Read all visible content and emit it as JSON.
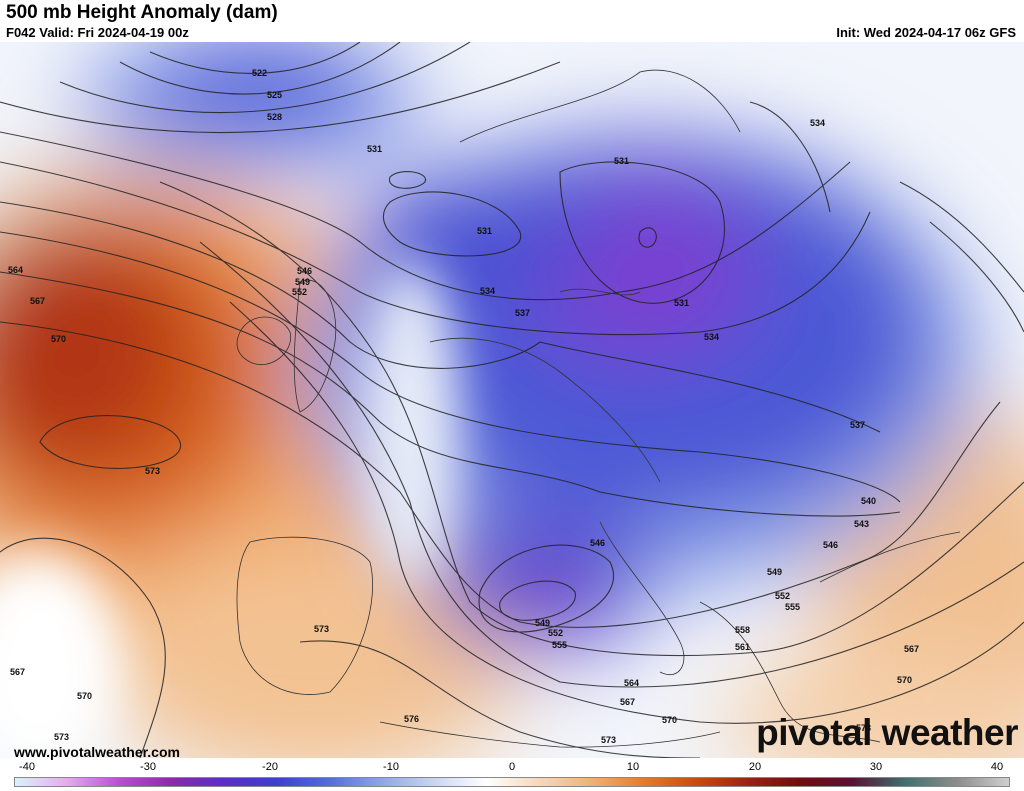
{
  "header": {
    "title": "500 mb Height Anomaly (dam)",
    "valid": "F042 Valid: Fri 2024-04-19 00z",
    "init": "Init: Wed 2024-04-17 06z GFS"
  },
  "footer": {
    "website": "www.pivotalweather.com",
    "brand": "pivotal weather"
  },
  "colorbar": {
    "ticks": [
      "-40",
      "-30",
      "-20",
      "-10",
      "0",
      "10",
      "20",
      "30",
      "40"
    ],
    "min": -40,
    "max": 40,
    "stops": [
      "#d8f3fb",
      "#e7a9ee",
      "#b64fd0",
      "#8a2aa8",
      "#5c2ec7",
      "#3e3fd1",
      "#4f6fd8",
      "#8ea6e6",
      "#c8d5f2",
      "#ffffff",
      "#f7d8bc",
      "#f0b27a",
      "#e37d2c",
      "#c94d12",
      "#9a2310",
      "#6f0e0e",
      "#5a1030",
      "#3f6f70",
      "#8c8c8c",
      "#cfcfcf"
    ]
  },
  "contour_labels": [
    "522",
    "525",
    "528",
    "531",
    "534",
    "537",
    "540",
    "543",
    "546",
    "549",
    "552",
    "555",
    "558",
    "561",
    "564",
    "567",
    "570",
    "573",
    "576"
  ],
  "map_labels": [
    {
      "text": "522"
    },
    {
      "text": "525"
    },
    {
      "text": "528"
    },
    {
      "text": "531"
    },
    {
      "text": "531"
    },
    {
      "text": "531"
    },
    {
      "text": "534"
    },
    {
      "text": "534"
    },
    {
      "text": "534"
    },
    {
      "text": "531"
    },
    {
      "text": "537"
    },
    {
      "text": "537"
    },
    {
      "text": "546"
    },
    {
      "text": "549"
    },
    {
      "text": "552"
    },
    {
      "text": "564"
    },
    {
      "text": "567"
    },
    {
      "text": "570"
    },
    {
      "text": "573"
    },
    {
      "text": "573"
    },
    {
      "text": "567"
    },
    {
      "text": "570"
    },
    {
      "text": "573"
    },
    {
      "text": "540"
    },
    {
      "text": "543"
    },
    {
      "text": "546"
    },
    {
      "text": "549"
    },
    {
      "text": "552"
    },
    {
      "text": "555"
    },
    {
      "text": "546"
    },
    {
      "text": "549"
    },
    {
      "text": "552"
    },
    {
      "text": "555"
    },
    {
      "text": "558"
    },
    {
      "text": "561"
    },
    {
      "text": "564"
    },
    {
      "text": "567"
    },
    {
      "text": "570"
    },
    {
      "text": "573"
    },
    {
      "text": "576"
    },
    {
      "text": "567"
    },
    {
      "text": "570"
    },
    {
      "text": "573"
    }
  ]
}
